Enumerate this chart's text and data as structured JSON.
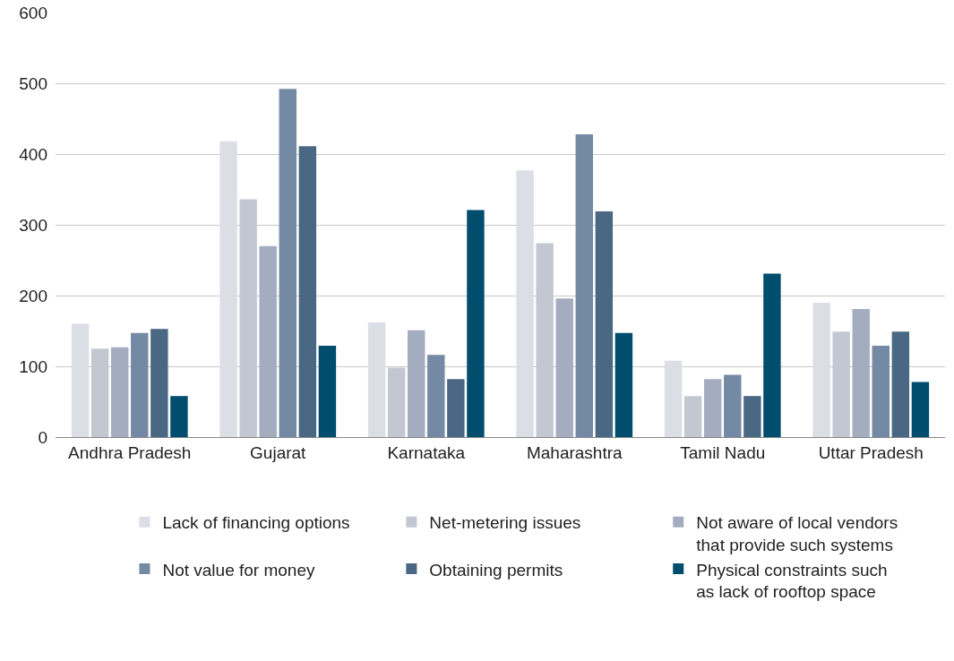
{
  "chart_data": {
    "type": "bar",
    "categories": [
      "Andhra Pradesh",
      "Gujarat",
      "Karnataka",
      "Maharashtra",
      "Tamil Nadu",
      "Uttar Pradesh"
    ],
    "series": [
      {
        "name": "Lack of financing options",
        "color": "#dcdee6",
        "values": [
          160,
          418,
          162,
          377,
          108,
          190
        ]
      },
      {
        "name": "Net-metering issues",
        "color": "#c3c7d2",
        "values": [
          125,
          336,
          98,
          274,
          58,
          149
        ]
      },
      {
        "name": "Not aware of local vendors that provide such systems",
        "color": "#a4acbf",
        "values": [
          127,
          270,
          151,
          196,
          82,
          181
        ]
      },
      {
        "name": "Not value for money",
        "color": "#7489a3",
        "values": [
          147,
          492,
          116,
          428,
          88,
          129
        ]
      },
      {
        "name": "Obtaining permits",
        "color": "#4a6784",
        "values": [
          153,
          411,
          82,
          319,
          58,
          149
        ]
      },
      {
        "name": "Physical constraints such as lack of rooftop space",
        "color": "#004d6e",
        "values": [
          58,
          129,
          321,
          147,
          231,
          78
        ]
      }
    ],
    "ylim": [
      0,
      600
    ],
    "yticks": [
      0,
      100,
      200,
      300,
      400,
      500,
      600
    ],
    "grid": "y",
    "legend": "bottom"
  }
}
